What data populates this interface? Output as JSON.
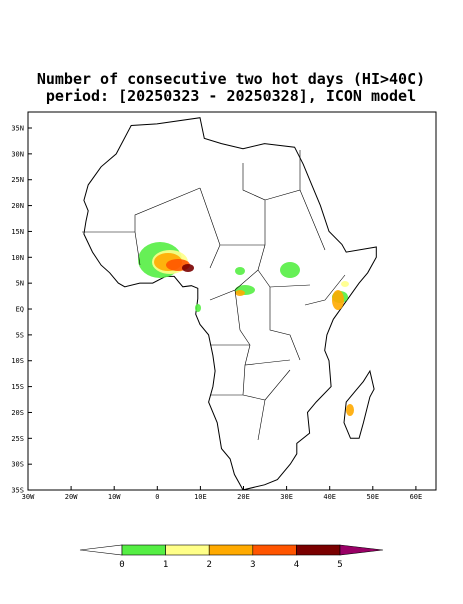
{
  "header": {
    "title_line1": "Number of consecutive two hot days (HI>40C)",
    "title_line2": "period: [20250323 - 20250328], ICON model"
  },
  "map": {
    "lat_ticks": [
      "35N",
      "30N",
      "25N",
      "20N",
      "15N",
      "10N",
      "5N",
      "EQ",
      "5S",
      "10S",
      "15S",
      "20S",
      "25S",
      "30S",
      "35S"
    ],
    "lon_ticks": [
      "30W",
      "20W",
      "10W",
      "0",
      "10E",
      "20E",
      "30E",
      "40E",
      "50E",
      "60E"
    ]
  },
  "colorbar": {
    "labels": [
      "0",
      "1",
      "2",
      "3",
      "4",
      "5"
    ],
    "colors": [
      "#ffffff",
      "#55ee44",
      "#ffff88",
      "#ffaa00",
      "#ff5500",
      "#7a0000",
      "#990066"
    ]
  }
}
